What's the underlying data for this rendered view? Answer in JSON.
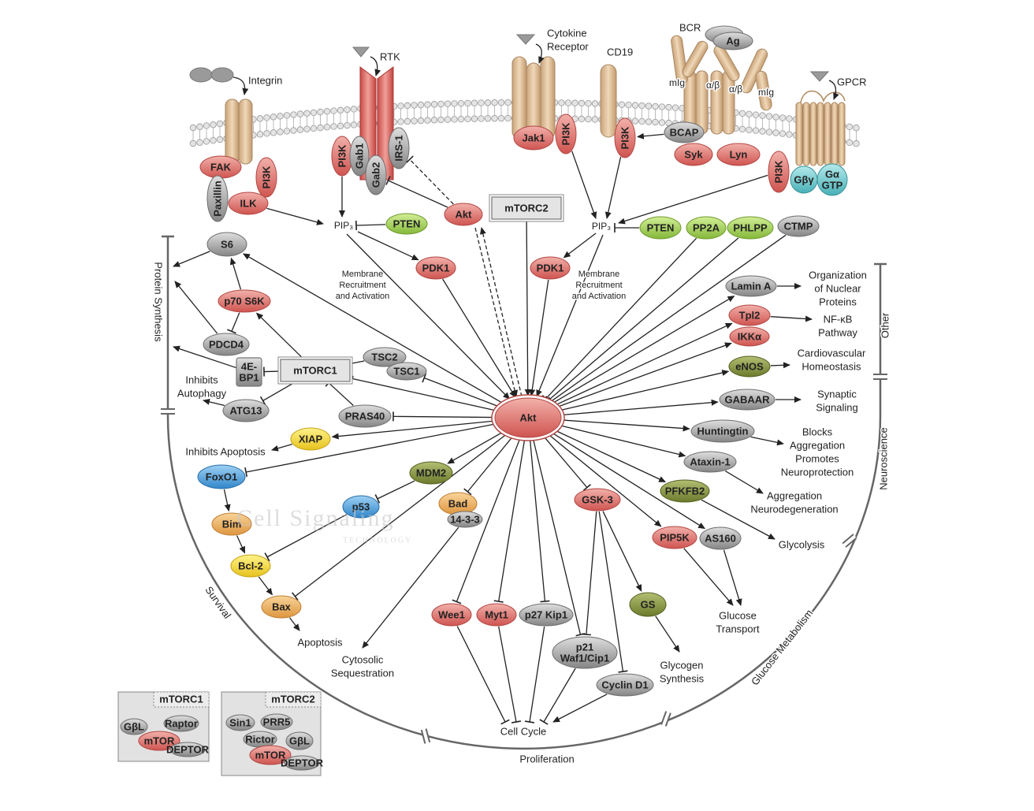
{
  "nodes": [
    {
      "label": "FAK"
    },
    {
      "label": "Paxillin"
    },
    {
      "label": "PI3K"
    },
    {
      "label": "ILK"
    },
    {
      "label": "PI3K"
    },
    {
      "label": "Gab1"
    },
    {
      "label": "Gab2"
    },
    {
      "label": "IRS-1"
    },
    {
      "label": "Jak1"
    },
    {
      "label": "PI3K"
    },
    {
      "label": "PI3K"
    },
    {
      "label": "BCAP"
    },
    {
      "label": "Syk"
    },
    {
      "label": "Lyn"
    },
    {
      "label": "PI3K"
    },
    {
      "label": "Gβγ"
    },
    {
      "label": [
        "Gα",
        "GTP"
      ]
    },
    {
      "label": "Ag"
    },
    {
      "label": "PTEN"
    },
    {
      "label": "Akt"
    },
    {
      "label": "mTORC2"
    },
    {
      "label": "PTEN"
    },
    {
      "label": "PP2A"
    },
    {
      "label": "PHLPP"
    },
    {
      "label": "CTMP"
    },
    {
      "label": "S6"
    },
    {
      "label": "p70 S6K"
    },
    {
      "label": "PDCD4"
    },
    {
      "label": [
        "4E-",
        "BP1"
      ]
    },
    {
      "label": "mTORC1"
    },
    {
      "label": "TSC2"
    },
    {
      "label": "TSC1"
    },
    {
      "label": "ATG13"
    },
    {
      "label": "PRAS40"
    },
    {
      "label": "PDK1"
    },
    {
      "label": "PDK1"
    },
    {
      "label": "Akt"
    },
    {
      "label": "Lamin A"
    },
    {
      "label": "Tpl2"
    },
    {
      "label": "IKKα"
    },
    {
      "label": "eNOS"
    },
    {
      "label": "GABAAR"
    },
    {
      "label": "Huntingtin"
    },
    {
      "label": "Ataxin-1"
    },
    {
      "label": "PFKFB2"
    },
    {
      "label": "PIP5K"
    },
    {
      "label": "AS160"
    },
    {
      "label": "XIAP"
    },
    {
      "label": "FoxO1"
    },
    {
      "label": "MDM2"
    },
    {
      "label": "p53"
    },
    {
      "label": "Bad"
    },
    {
      "label": "14-3-3"
    },
    {
      "label": "Bim"
    },
    {
      "label": "Bcl-2"
    },
    {
      "label": "Bax"
    },
    {
      "label": "GSK-3"
    },
    {
      "label": "GS"
    },
    {
      "label": "Wee1"
    },
    {
      "label": "Myt1"
    },
    {
      "label": "p27 Kip1"
    },
    {
      "label": [
        "p21",
        "Waf1/Cip1"
      ]
    },
    {
      "label": "Cyclin D1"
    }
  ],
  "labels": [
    {
      "lines": [
        "Integrin"
      ]
    },
    {
      "lines": [
        "RTK"
      ]
    },
    {
      "lines": [
        "Cytokine",
        "Receptor"
      ]
    },
    {
      "lines": [
        "CD19"
      ]
    },
    {
      "lines": [
        "BCR"
      ]
    },
    {
      "lines": [
        "mIg"
      ]
    },
    {
      "lines": [
        "α/β"
      ]
    },
    {
      "lines": [
        "α/β"
      ]
    },
    {
      "lines": [
        "mIg"
      ]
    },
    {
      "lines": [
        "GPCR"
      ]
    },
    {
      "lines": [
        "PIP₃"
      ]
    },
    {
      "lines": [
        "PIP₃"
      ]
    },
    {
      "lines": [
        "Membrane",
        "Recruitment",
        "and Activation"
      ]
    },
    {
      "lines": [
        "Membrane",
        "Recruitment",
        "and Activation"
      ]
    },
    {
      "lines": [
        "Protein Synthesis"
      ]
    },
    {
      "lines": [
        "Inhibits",
        "Autophagy"
      ]
    },
    {
      "lines": [
        "Inhibits Apoptosis"
      ]
    },
    {
      "lines": [
        "Apoptosis"
      ]
    },
    {
      "lines": [
        "Cytosolic",
        "Sequestration"
      ]
    },
    {
      "lines": [
        "Survival"
      ]
    },
    {
      "lines": [
        "Cell Cycle"
      ]
    },
    {
      "lines": [
        "Proliferation"
      ]
    },
    {
      "lines": [
        "Glycogen",
        "Synthesis"
      ]
    },
    {
      "lines": [
        "Glucose",
        "Transport"
      ]
    },
    {
      "lines": [
        "Glucose Metabolism"
      ]
    },
    {
      "lines": [
        "Glycolysis"
      ]
    },
    {
      "lines": [
        "Aggregation",
        "Neurodegeneration"
      ]
    },
    {
      "lines": [
        "Blocks",
        "Aggregation",
        "Promotes",
        "Neuroprotection"
      ]
    },
    {
      "lines": [
        "Neuroscience"
      ]
    },
    {
      "lines": [
        "Synaptic",
        "Signaling"
      ]
    },
    {
      "lines": [
        "Cardiovascular",
        "Homeostasis"
      ]
    },
    {
      "lines": [
        "NF-κB",
        "Pathway"
      ]
    },
    {
      "lines": [
        "Organization",
        "of Nuclear",
        "Proteins"
      ]
    },
    {
      "lines": [
        "Other"
      ]
    },
    {
      "lines": [
        "Cell Signaling"
      ]
    },
    {
      "lines": [
        "TECHNOLOGY"
      ]
    }
  ],
  "legend": [
    {
      "title": "mTORC1",
      "parts": [
        "GβL",
        "Raptor",
        "mTOR",
        "DEPTOR"
      ]
    },
    {
      "title": "mTORC2",
      "parts": [
        "Sin1",
        "PRR5",
        "Rictor",
        "GβL",
        "mTOR",
        "DEPTOR"
      ]
    }
  ]
}
